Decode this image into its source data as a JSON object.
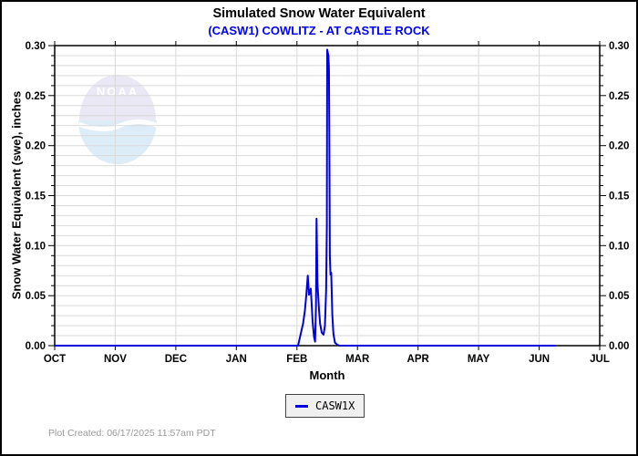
{
  "header": {
    "title": "Simulated Snow Water Equivalent",
    "subtitle": "(CASW1) COWLITZ - AT CASTLE ROCK"
  },
  "watermark": {
    "text": "NOAA"
  },
  "axes": {
    "y_label": "Snow Water Equivalent (swe),  inches",
    "x_label": "Month"
  },
  "legend": {
    "series_label": "CASW1X"
  },
  "footer": {
    "created_text": "Plot Created: 06/17/2025 11:57am PDT"
  },
  "colors": {
    "series_line": "#0000dd",
    "subtitle": "#0000ff",
    "grid": "#d9d9d9",
    "axis": "#000000",
    "tick_label": "#000000",
    "footer_text": "#9a9a9a",
    "legend_bg": "#f0f0f0",
    "legend_border": "#444444",
    "noaa_top": "#e9e8f4",
    "noaa_bottom": "#dcedf7"
  },
  "chart_data": {
    "type": "line",
    "title": "Simulated Snow Water Equivalent",
    "subtitle": "(CASW1) COWLITZ - AT CASTLE ROCK",
    "xlabel": "Month",
    "ylabel": "Snow Water Equivalent (swe),  inches",
    "x_tick_labels": [
      "OCT",
      "NOV",
      "DEC",
      "JAN",
      "FEB",
      "MAR",
      "APR",
      "MAY",
      "JUN",
      "JUL"
    ],
    "y_tick_labels": [
      "0.00",
      "0.05",
      "0.10",
      "0.15",
      "0.20",
      "0.25",
      "0.30"
    ],
    "ylim": [
      0,
      0.3
    ],
    "xlim_months": [
      0,
      9
    ],
    "y_major_step": 0.05,
    "y_minor_grid_step": 0.01,
    "x_grid_step_months": 1,
    "grid": true,
    "legend_position": "bottom-center",
    "series": [
      {
        "name": "CASW1X",
        "color": "#0000dd",
        "x_unit": "months_after_oct_1",
        "points": [
          [
            0.0,
            0
          ],
          [
            4.018,
            0
          ],
          [
            4.064,
            0.012
          ],
          [
            4.101,
            0.022
          ],
          [
            4.131,
            0.035
          ],
          [
            4.154,
            0.05
          ],
          [
            4.18,
            0.07
          ],
          [
            4.199,
            0.051
          ],
          [
            4.229,
            0.057
          ],
          [
            4.259,
            0.024
          ],
          [
            4.282,
            0.009
          ],
          [
            4.3,
            0.004
          ],
          [
            4.315,
            0.04
          ],
          [
            4.324,
            0.127
          ],
          [
            4.339,
            0.063
          ],
          [
            4.365,
            0.036
          ],
          [
            4.383,
            0.022
          ],
          [
            4.41,
            0.013
          ],
          [
            4.44,
            0.011
          ],
          [
            4.462,
            0.02
          ],
          [
            4.482,
            0.055
          ],
          [
            4.494,
            0.12
          ],
          [
            4.5,
            0.296
          ],
          [
            4.52,
            0.29
          ],
          [
            4.529,
            0.278
          ],
          [
            4.535,
            0.22
          ],
          [
            4.544,
            0.09
          ],
          [
            4.554,
            0.071
          ],
          [
            4.566,
            0.073
          ],
          [
            4.584,
            0.031
          ],
          [
            4.602,
            0.012
          ],
          [
            4.628,
            0.003
          ],
          [
            4.665,
            0.001
          ],
          [
            4.695,
            0
          ],
          [
            8.27,
            0
          ]
        ]
      }
    ]
  }
}
